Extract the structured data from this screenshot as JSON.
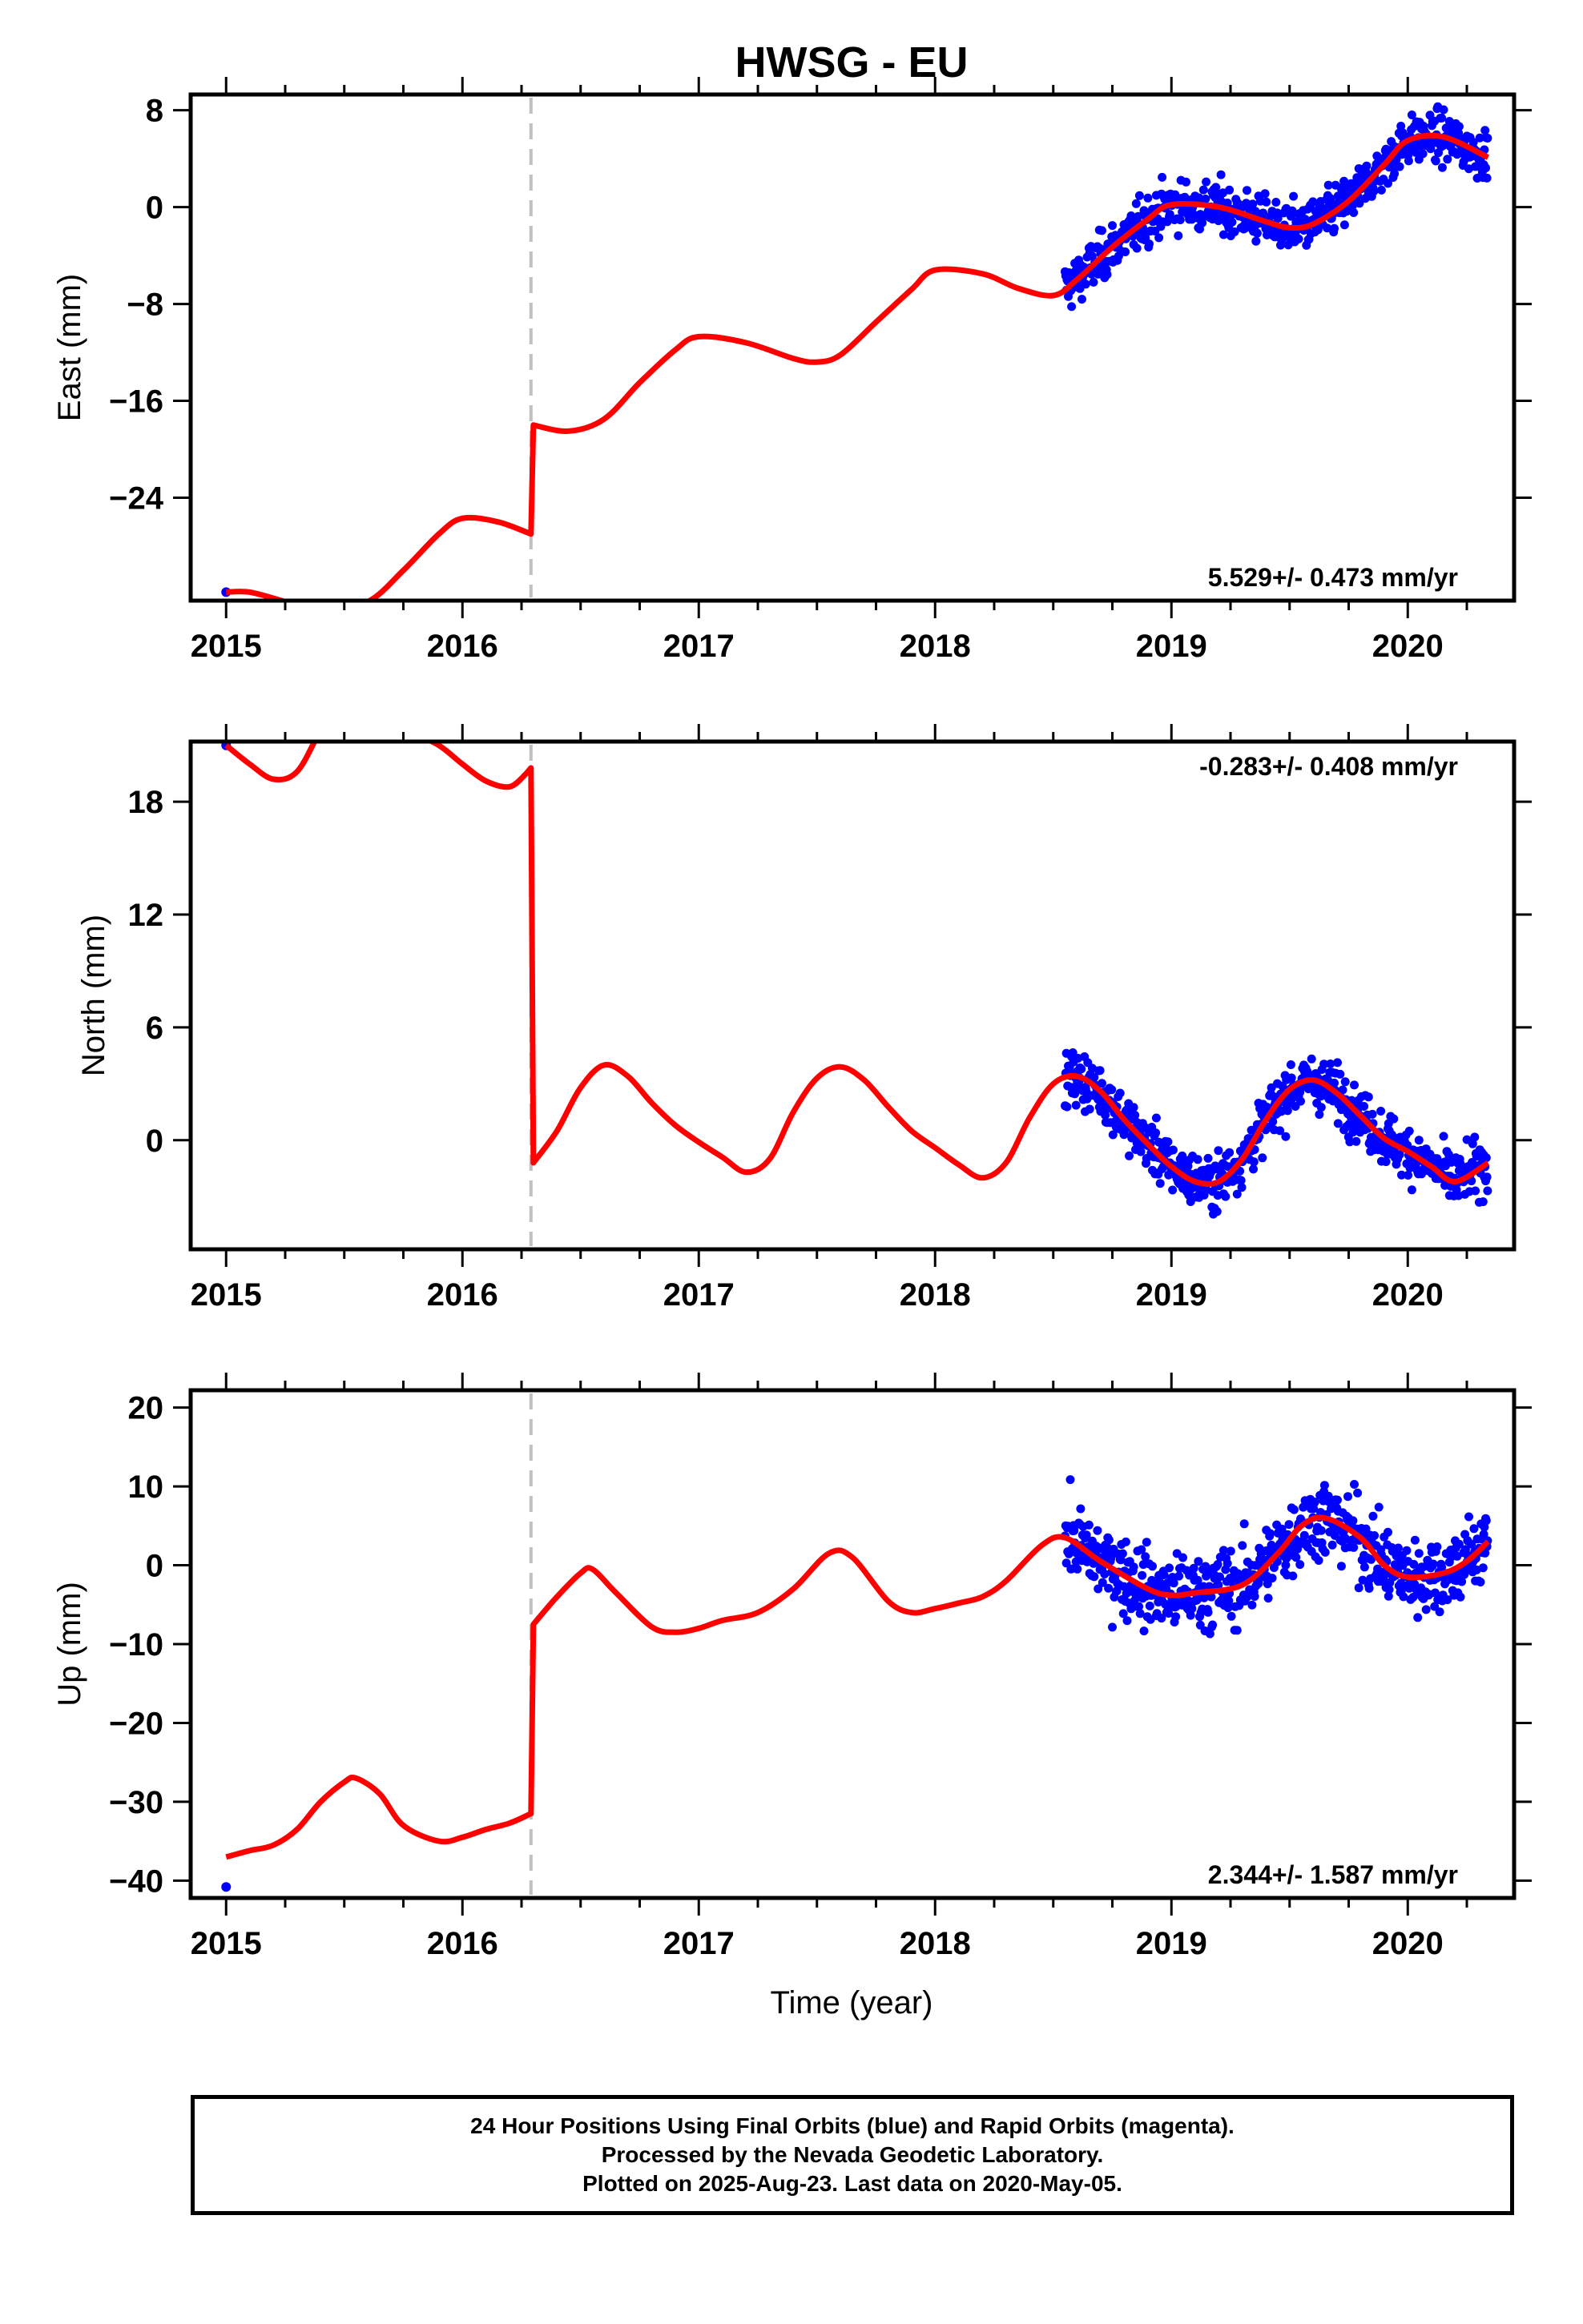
{
  "title": "HWSG - EU",
  "xlabel": "Time (year)",
  "colors": {
    "data": "#0000ff",
    "model": "#ff0000",
    "offset": "#c0c0c0",
    "axes": "#000000"
  },
  "footer": {
    "line1": "24 Hour Positions Using Final Orbits (blue) and Rapid Orbits (magenta).",
    "line2": "Processed by the Nevada Geodetic Laboratory.",
    "line3": "Plotted on 2025-Aug-23. Last data on 2020-May-05."
  },
  "chart_data": [
    {
      "type": "scatter",
      "ylabel": "East (mm)",
      "rate_label": "5.529+/- 0.473 mm/yr",
      "rate_position": "bottom-right",
      "xlim": [
        2014.85,
        2020.45
      ],
      "ylim": [
        -32.5,
        9.3
      ],
      "xticks": [
        2015,
        2016,
        2017,
        2018,
        2019,
        2020
      ],
      "xtick_labels": [
        "2015",
        "2016",
        "2017",
        "2018",
        "2019",
        "2020"
      ],
      "yticks": [
        8,
        0,
        -8,
        -16,
        -24
      ],
      "ytick_labels": [
        "8",
        "0",
        "−8",
        "−16",
        "−24"
      ],
      "offset_epoch": 2016.29,
      "model_curve": {
        "x": [
          2015.0,
          2015.1,
          2015.25,
          2015.4,
          2015.6,
          2015.75,
          2015.9,
          2016.0,
          2016.15,
          2016.29,
          2016.3,
          2016.45,
          2016.6,
          2016.75,
          2016.9,
          2017.0,
          2017.2,
          2017.4,
          2017.5,
          2017.6,
          2017.75,
          2017.9,
          2018.0,
          2018.2,
          2018.35,
          2018.5,
          2018.6,
          2018.75,
          2018.9,
          2019.0,
          2019.2,
          2019.4,
          2019.5,
          2019.6,
          2019.75,
          2019.9,
          2020.0,
          2020.15,
          2020.34
        ],
        "y": [
          -31.8,
          -31.8,
          -32.6,
          -33.6,
          -32.6,
          -30.0,
          -27.0,
          -25.7,
          -26.0,
          -27.0,
          -18.0,
          -18.5,
          -17.5,
          -14.5,
          -11.8,
          -10.7,
          -11.2,
          -12.5,
          -12.8,
          -12.2,
          -9.5,
          -6.8,
          -5.2,
          -5.5,
          -6.7,
          -7.3,
          -6.0,
          -3.3,
          -1.0,
          0.2,
          0.0,
          -1.2,
          -1.7,
          -1.4,
          0.5,
          3.5,
          5.5,
          5.8,
          4.1
        ]
      },
      "data_points_summary": {
        "start": 2018.55,
        "end": 2020.34,
        "scatter_mm": 1.4
      },
      "isolated_points": [
        {
          "x": 2015.0,
          "y": -31.8
        }
      ]
    },
    {
      "type": "scatter",
      "ylabel": "North (mm)",
      "rate_label": "-0.283+/- 0.408 mm/yr",
      "rate_position": "top-right",
      "xlim": [
        2014.85,
        2020.45
      ],
      "ylim": [
        -5.8,
        21.2
      ],
      "xticks": [
        2015,
        2016,
        2017,
        2018,
        2019,
        2020
      ],
      "xtick_labels": [
        "2015",
        "2016",
        "2017",
        "2018",
        "2019",
        "2020"
      ],
      "yticks": [
        18,
        12,
        6,
        0
      ],
      "ytick_labels": [
        "18",
        "12",
        "6",
        "0"
      ],
      "offset_epoch": 2016.29,
      "model_curve": {
        "x": [
          2015.0,
          2015.1,
          2015.2,
          2015.3,
          2015.4,
          2015.5,
          2015.6,
          2015.75,
          2015.9,
          2016.0,
          2016.1,
          2016.2,
          2016.27,
          2016.29,
          2016.3,
          2016.4,
          2016.5,
          2016.6,
          2016.7,
          2016.8,
          2016.9,
          2017.0,
          2017.1,
          2017.2,
          2017.3,
          2017.4,
          2017.5,
          2017.6,
          2017.7,
          2017.8,
          2017.9,
          2018.0,
          2018.1,
          2018.2,
          2018.3,
          2018.4,
          2018.5,
          2018.6,
          2018.7,
          2018.8,
          2018.9,
          2019.0,
          2019.1,
          2019.2,
          2019.3,
          2019.4,
          2019.5,
          2019.6,
          2019.7,
          2019.8,
          2019.9,
          2020.0,
          2020.1,
          2020.2,
          2020.34
        ],
        "y": [
          21.0,
          20.0,
          19.2,
          19.6,
          21.8,
          23.8,
          23.5,
          22.0,
          21.0,
          20.0,
          19.1,
          18.8,
          19.5,
          19.8,
          -1.2,
          0.5,
          2.8,
          4.0,
          3.4,
          2.0,
          0.8,
          -0.1,
          -0.9,
          -1.7,
          -1.0,
          1.5,
          3.3,
          3.9,
          3.2,
          1.8,
          0.5,
          -0.4,
          -1.3,
          -2.0,
          -1.2,
          1.2,
          3.0,
          3.4,
          2.6,
          1.1,
          -0.2,
          -1.4,
          -2.2,
          -2.2,
          -1.0,
          1.1,
          2.7,
          3.2,
          2.5,
          1.3,
          0.1,
          -0.6,
          -1.4,
          -2.2,
          -1.2
        ]
      },
      "data_points_summary": {
        "start": 2018.55,
        "end": 2020.34,
        "scatter_mm": 1.0
      },
      "isolated_points": [
        {
          "x": 2015.0,
          "y": 21.0
        }
      ]
    },
    {
      "type": "scatter",
      "ylabel": "Up (mm)",
      "rate_label": "2.344+/- 1.587 mm/yr",
      "rate_position": "bottom-right",
      "xlim": [
        2014.85,
        2020.45
      ],
      "ylim": [
        -42.2,
        22.2
      ],
      "xticks": [
        2015,
        2016,
        2017,
        2018,
        2019,
        2020
      ],
      "xtick_labels": [
        "2015",
        "2016",
        "2017",
        "2018",
        "2019",
        "2020"
      ],
      "yticks": [
        20,
        10,
        0,
        -10,
        -20,
        -30,
        -40
      ],
      "ytick_labels": [
        "20",
        "10",
        "0",
        "−10",
        "−20",
        "−30",
        "−40"
      ],
      "offset_epoch": 2016.29,
      "model_curve": {
        "x": [
          2015.0,
          2015.1,
          2015.2,
          2015.3,
          2015.4,
          2015.5,
          2015.55,
          2015.65,
          2015.75,
          2015.9,
          2016.0,
          2016.1,
          2016.2,
          2016.29,
          2016.3,
          2016.4,
          2016.5,
          2016.55,
          2016.65,
          2016.8,
          2016.9,
          2017.0,
          2017.1,
          2017.25,
          2017.4,
          2017.55,
          2017.65,
          2017.8,
          2017.9,
          2018.0,
          2018.1,
          2018.2,
          2018.3,
          2018.45,
          2018.55,
          2018.7,
          2018.9,
          2019.0,
          2019.1,
          2019.3,
          2019.45,
          2019.55,
          2019.65,
          2019.8,
          2019.9,
          2020.0,
          2020.15,
          2020.25,
          2020.34
        ],
        "y": [
          -37.0,
          -36.2,
          -35.5,
          -33.5,
          -30.0,
          -27.5,
          -27.0,
          -29.0,
          -33.0,
          -35.0,
          -34.5,
          -33.5,
          -32.7,
          -31.5,
          -7.5,
          -4.0,
          -1.0,
          -0.5,
          -3.5,
          -7.8,
          -8.5,
          -8.0,
          -7.0,
          -6.0,
          -3.0,
          1.5,
          1.0,
          -4.5,
          -6.0,
          -5.5,
          -4.8,
          -4.0,
          -2.0,
          2.5,
          3.5,
          0.5,
          -3.0,
          -3.8,
          -3.5,
          -2.5,
          1.5,
          5.0,
          6.0,
          3.5,
          0.0,
          -1.5,
          -1.0,
          0.5,
          3.0
        ]
      },
      "data_points_summary": {
        "start": 2018.55,
        "end": 2020.34,
        "scatter_mm": 3.5
      },
      "isolated_points": [
        {
          "x": 2015.0,
          "y": -40.8
        }
      ]
    }
  ]
}
